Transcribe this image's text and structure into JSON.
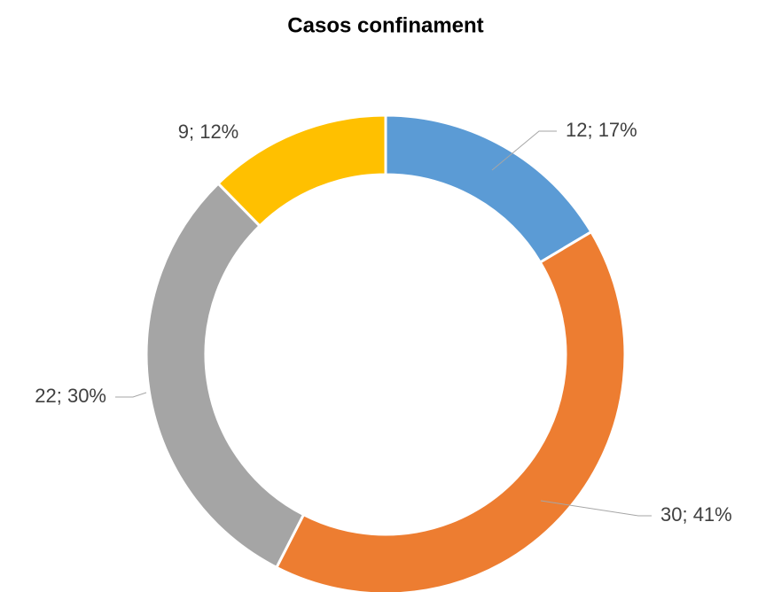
{
  "chart_data": {
    "type": "donut",
    "title": "Casos confinament",
    "values": [
      12,
      30,
      22,
      9
    ],
    "value_labels": [
      "12; 17%",
      "30; 41%",
      "22; 30%",
      "9; 12%"
    ],
    "colors": [
      "#5b9bd5",
      "#ed7d31",
      "#a5a5a5",
      "#ffc000"
    ]
  }
}
